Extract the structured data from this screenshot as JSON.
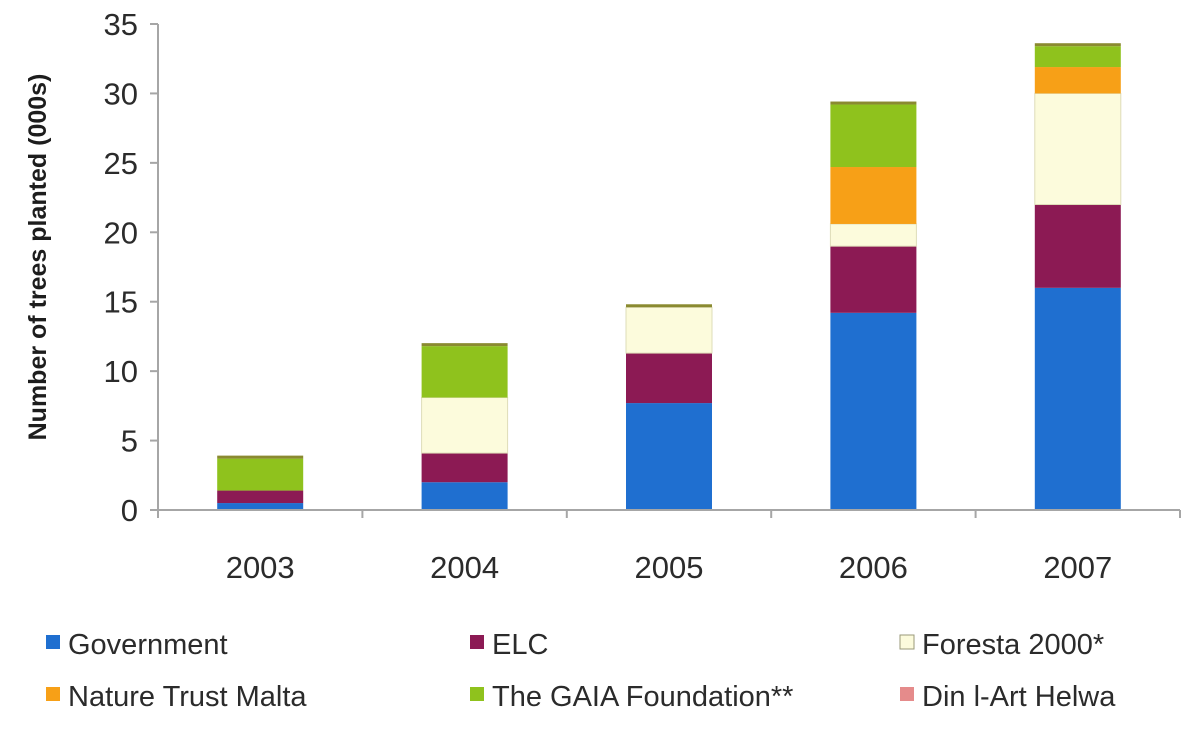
{
  "chart_data": {
    "type": "bar",
    "stacked": true,
    "title": "",
    "xlabel": "",
    "ylabel": "Number of trees planted (000s)",
    "ylim": [
      0,
      35
    ],
    "yticks": [
      0,
      5,
      10,
      15,
      20,
      25,
      30,
      35
    ],
    "grid": false,
    "legend_position": "bottom",
    "categories": [
      "2003",
      "2004",
      "2005",
      "2006",
      "2007"
    ],
    "series": [
      {
        "name": "Government",
        "color": "#1f6fd0",
        "values": [
          0.5,
          2.0,
          7.7,
          14.2,
          16.0
        ]
      },
      {
        "name": "ELC",
        "color": "#8c1a54",
        "values": [
          0.9,
          2.1,
          3.6,
          4.8,
          6.0
        ]
      },
      {
        "name": "Foresta 2000*",
        "color": "#fcfbdc",
        "values": [
          0.0,
          4.0,
          3.3,
          1.6,
          8.0
        ]
      },
      {
        "name": "Nature Trust Malta",
        "color": "#f7a017",
        "values": [
          0.0,
          0.0,
          0.0,
          4.1,
          1.9
        ]
      },
      {
        "name": "The GAIA Foundation**",
        "color": "#8fc21d",
        "values": [
          2.3,
          3.7,
          0.0,
          4.5,
          1.5
        ]
      },
      {
        "name": "Din l-Art Helwa",
        "color": "#e58b8b",
        "values": [
          0.0,
          0.0,
          0.0,
          0.0,
          0.0
        ]
      }
    ]
  }
}
